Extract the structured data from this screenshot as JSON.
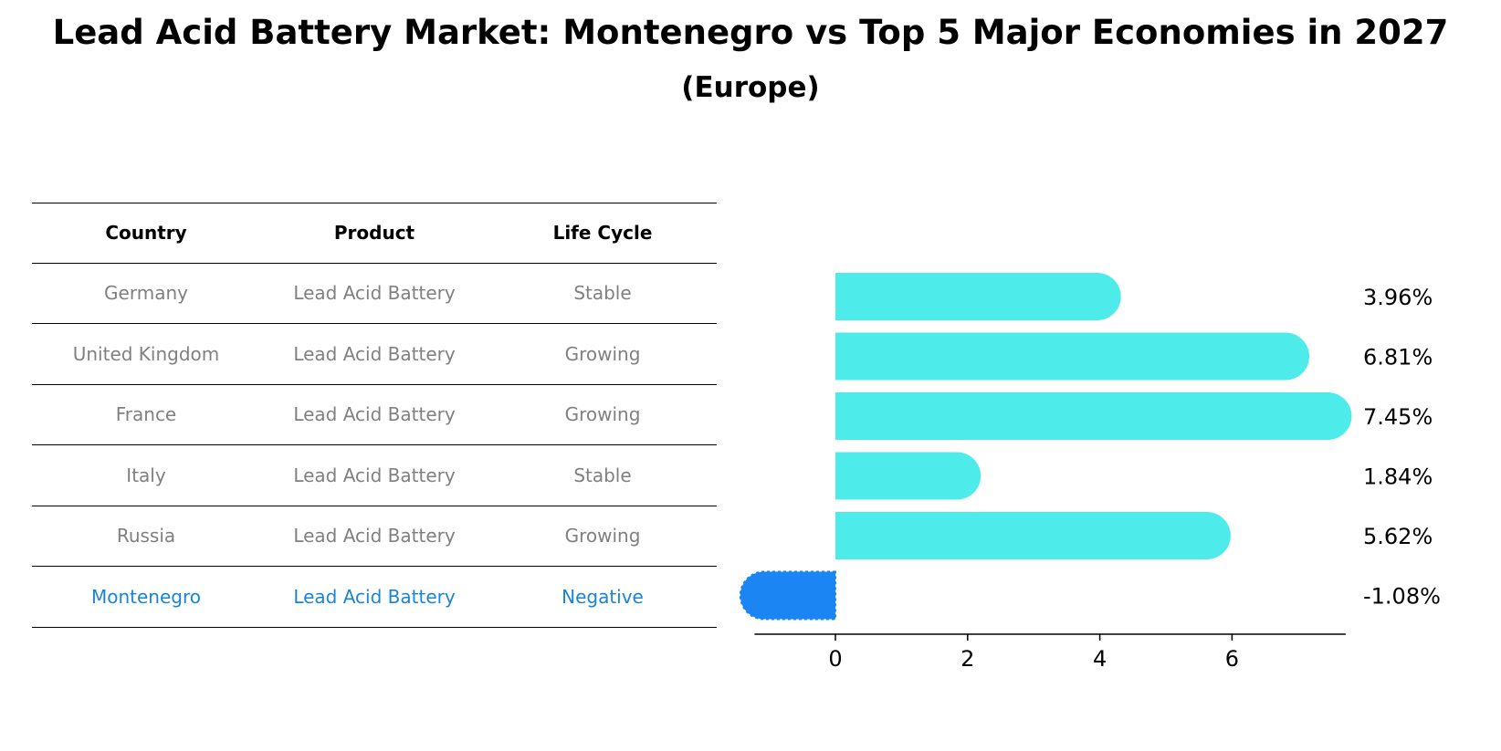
{
  "title": "Lead Acid Battery Market: Montenegro vs Top 5 Major Economies in 2027",
  "subtitle": "(Europe)",
  "table": {
    "headers": [
      "Country",
      "Product",
      "Life Cycle"
    ],
    "rows": [
      [
        "Germany",
        "Lead Acid Battery",
        "Stable"
      ],
      [
        "United Kingdom",
        "Lead Acid Battery",
        "Growing"
      ],
      [
        "France",
        "Lead Acid Battery",
        "Growing"
      ],
      [
        "Italy",
        "Lead Acid Battery",
        "Stable"
      ],
      [
        "Russia",
        "Lead Acid Battery",
        "Growing"
      ],
      [
        "Montenegro",
        "Lead Acid Battery",
        "Negative"
      ]
    ],
    "highlight_row": 5
  },
  "colors": {
    "bar": "#4deceb",
    "highlight_bar": "#1a85f3",
    "highlight_text": "#1a85d6",
    "text_gray": "#808080"
  },
  "chart_data": {
    "type": "bar",
    "orientation": "horizontal",
    "categories": [
      "Germany",
      "United Kingdom",
      "France",
      "Italy",
      "Russia",
      "Montenegro"
    ],
    "values": [
      3.96,
      6.81,
      7.45,
      1.84,
      5.62,
      -1.08
    ],
    "value_labels": [
      "3.96%",
      "6.81%",
      "7.45%",
      "1.84%",
      "5.62%",
      "-1.08%"
    ],
    "xticks": [
      0,
      2,
      4,
      6
    ],
    "xlim": [
      -1.5,
      7.9
    ],
    "grid": false
  }
}
